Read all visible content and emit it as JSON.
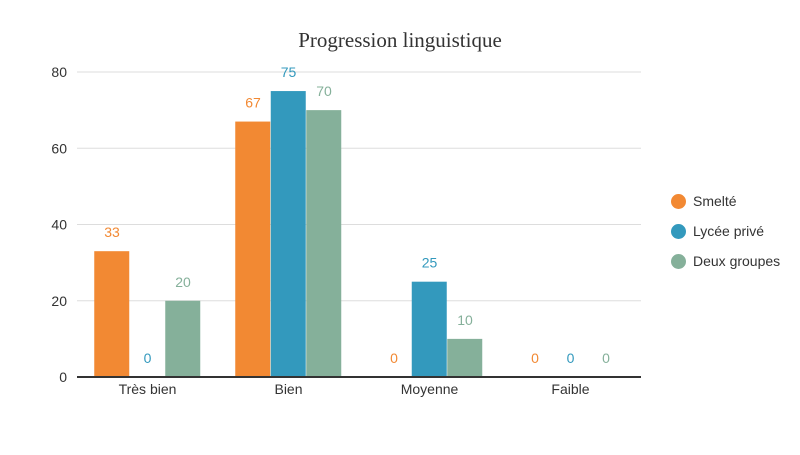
{
  "chart_data": {
    "type": "bar",
    "title": "Progression linguistique",
    "xlabel": "",
    "ylabel": "",
    "categories": [
      "Très bien",
      "Bien",
      "Moyenne",
      "Faible"
    ],
    "ylim": [
      0,
      80
    ],
    "yticks": [
      0,
      20,
      40,
      60,
      80
    ],
    "grid": true,
    "legend_position": "right",
    "series": [
      {
        "name": "Smelté",
        "color": "#f28933",
        "values": [
          33,
          67,
          0,
          0
        ]
      },
      {
        "name": "Lycée privé",
        "color": "#3399bd",
        "values": [
          0,
          75,
          25,
          0
        ]
      },
      {
        "name": "Deux groupes",
        "color": "#85b09a",
        "values": [
          20,
          70,
          10,
          0
        ]
      }
    ]
  }
}
